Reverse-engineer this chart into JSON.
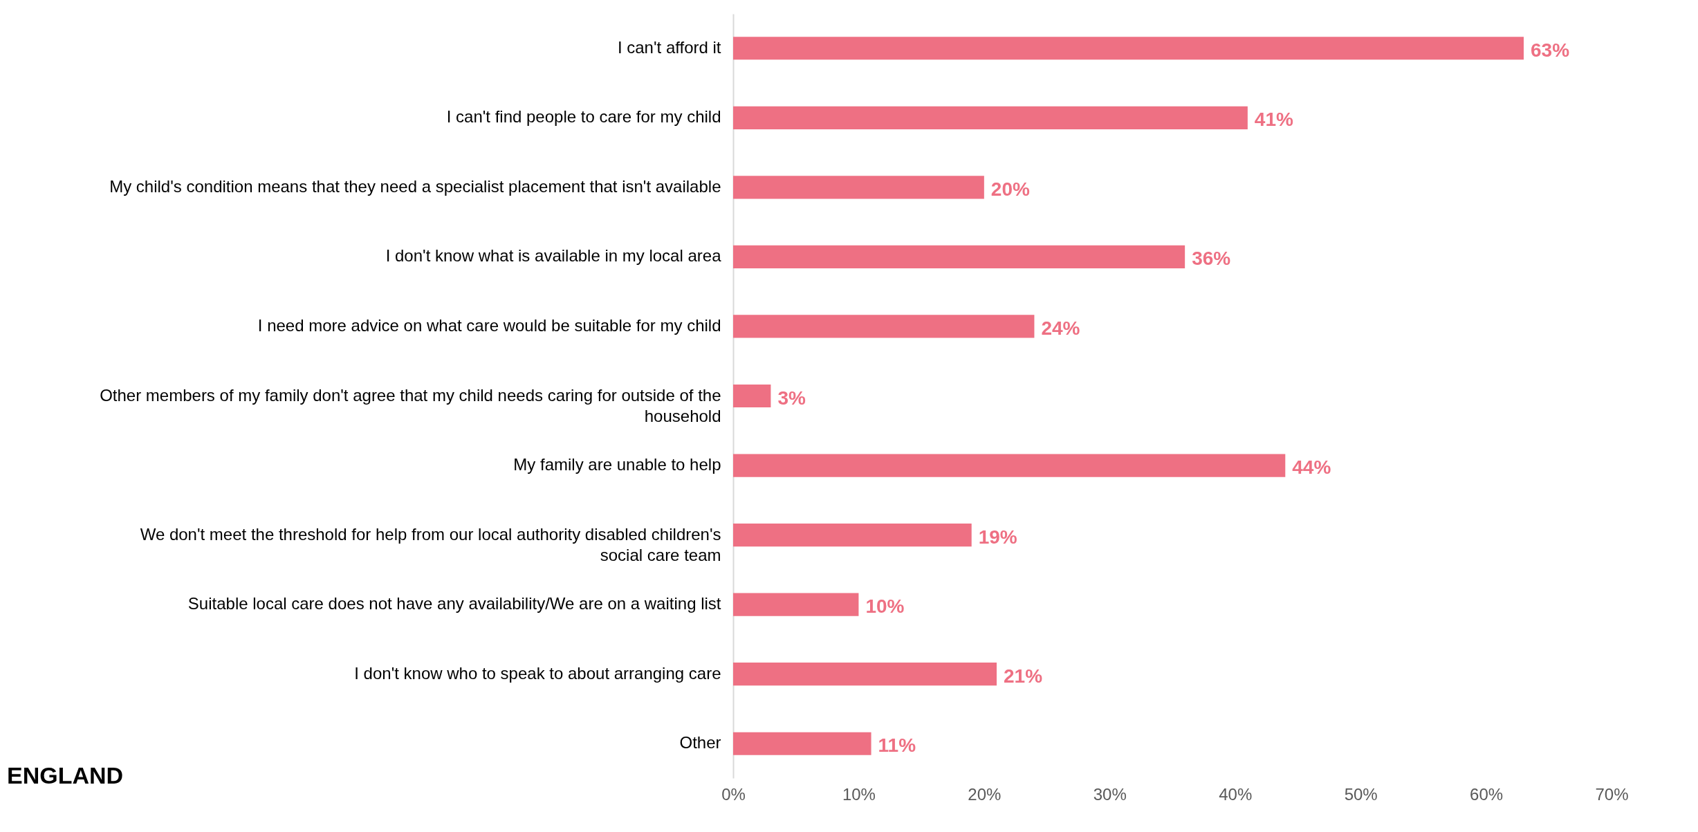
{
  "chart_data": {
    "type": "bar",
    "orientation": "horizontal",
    "title": "ENGLAND",
    "categories": [
      "I can't afford it",
      "I can't find people to care for my child",
      "My child's condition means that they need a specialist placement that isn't available",
      "I don't know what is available in my local area",
      "I need more advice on what care would be suitable for my child",
      "Other members of my family don't agree that my child needs caring for outside of the household",
      "My family are unable to help",
      "We don't meet the threshold for help from our local authority disabled children's social care team",
      "Suitable local care does not have any availability/We are on a waiting list",
      "I don't know who to speak to about arranging care",
      "Other"
    ],
    "values": [
      63,
      41,
      20,
      36,
      24,
      3,
      44,
      19,
      10,
      21,
      11
    ],
    "value_labels": [
      "63%",
      "41%",
      "20%",
      "36%",
      "24%",
      "3%",
      "44%",
      "19%",
      "10%",
      "21%",
      "11%"
    ],
    "color": "#ee7083",
    "xlim": [
      0,
      70
    ],
    "xticks": [
      {
        "value": 0,
        "label": "0%"
      },
      {
        "value": 10,
        "label": "10%"
      },
      {
        "value": 20,
        "label": "20%"
      },
      {
        "value": 30,
        "label": "30%"
      },
      {
        "value": 40,
        "label": "40%"
      },
      {
        "value": 50,
        "label": "50%"
      },
      {
        "value": 60,
        "label": "60%"
      },
      {
        "value": 70,
        "label": "70%"
      }
    ],
    "grid": false
  }
}
